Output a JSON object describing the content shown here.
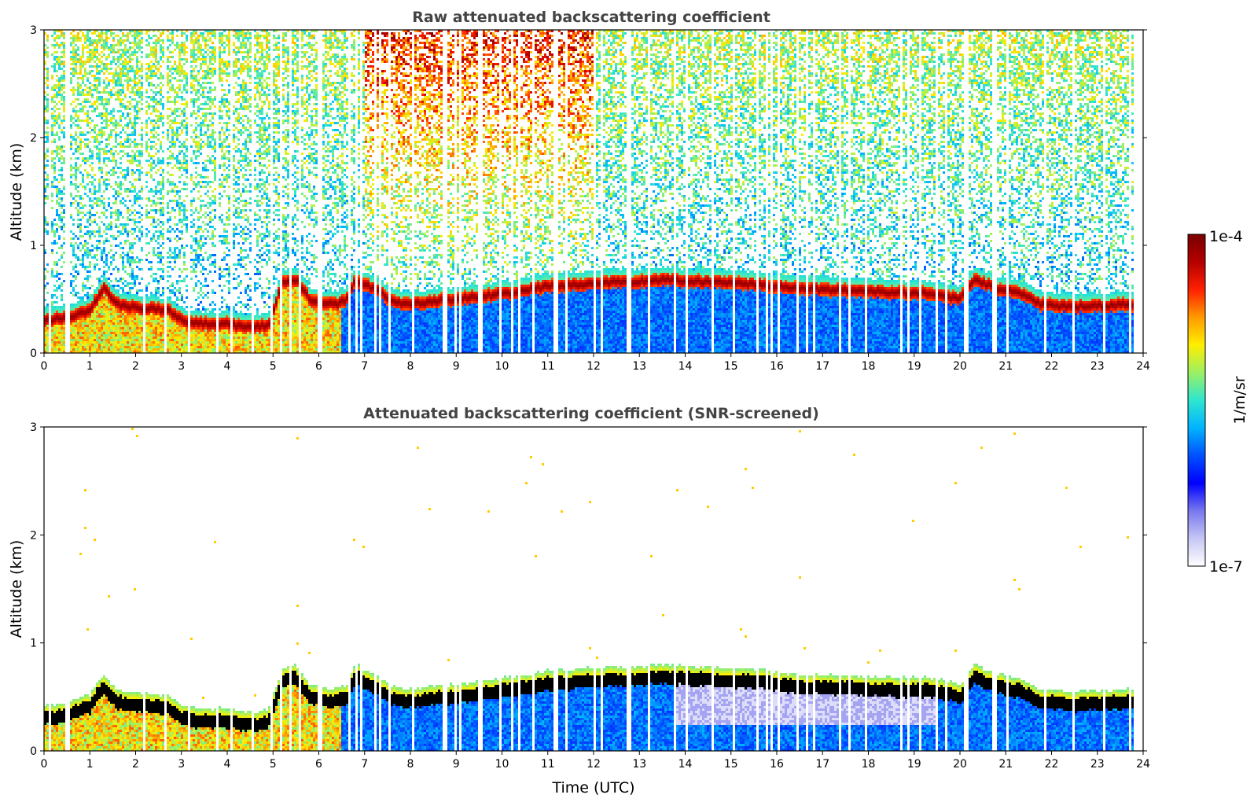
{
  "chart_data": [
    {
      "type": "heatmap",
      "title": "Raw attenuated backscattering coefficient",
      "xlabel": "",
      "ylabel": "Altitude (km)",
      "xlim": [
        0,
        24
      ],
      "ylim": [
        0,
        3
      ],
      "xticks": [
        0,
        1,
        2,
        3,
        4,
        5,
        6,
        7,
        8,
        9,
        10,
        11,
        12,
        13,
        14,
        15,
        16,
        17,
        18,
        19,
        20,
        21,
        22,
        23,
        24
      ],
      "yticks": [
        0,
        1,
        2,
        3
      ],
      "features": {
        "boundary_layer_top_km": [
          [
            0,
            0.3
          ],
          [
            0.5,
            0.33
          ],
          [
            1,
            0.4
          ],
          [
            1.3,
            0.6
          ],
          [
            1.6,
            0.45
          ],
          [
            2,
            0.42
          ],
          [
            2.7,
            0.4
          ],
          [
            3,
            0.3
          ],
          [
            3.5,
            0.27
          ],
          [
            4,
            0.27
          ],
          [
            4.5,
            0.24
          ],
          [
            4.9,
            0.26
          ],
          [
            5.2,
            0.65
          ],
          [
            5.5,
            0.68
          ],
          [
            5.8,
            0.5
          ],
          [
            6.3,
            0.45
          ],
          [
            6.6,
            0.48
          ],
          [
            6.8,
            0.68
          ],
          [
            7.2,
            0.6
          ],
          [
            7.6,
            0.48
          ],
          [
            8,
            0.45
          ],
          [
            8.5,
            0.48
          ],
          [
            9,
            0.5
          ],
          [
            9.5,
            0.52
          ],
          [
            10,
            0.55
          ],
          [
            10.5,
            0.58
          ],
          [
            11,
            0.62
          ],
          [
            11.5,
            0.63
          ],
          [
            12,
            0.65
          ],
          [
            12.5,
            0.66
          ],
          [
            13,
            0.66
          ],
          [
            13.5,
            0.68
          ],
          [
            15.8,
            0.63
          ],
          [
            16.3,
            0.6
          ],
          [
            19.5,
            0.55
          ],
          [
            20,
            0.5
          ],
          [
            20.3,
            0.68
          ],
          [
            20.8,
            0.6
          ],
          [
            21.3,
            0.55
          ],
          [
            21.8,
            0.45
          ],
          [
            22.5,
            0.43
          ],
          [
            23,
            0.44
          ],
          [
            23.8,
            0.45
          ]
        ],
        "data_end_hour": 23.8
      }
    },
    {
      "type": "heatmap",
      "title": "Attenuated backscattering coefficient (SNR-screened)",
      "xlabel": "Time (UTC)",
      "ylabel": "Altitude (km)",
      "xlim": [
        0,
        24
      ],
      "ylim": [
        0,
        3
      ],
      "xticks": [
        0,
        1,
        2,
        3,
        4,
        5,
        6,
        7,
        8,
        9,
        10,
        11,
        12,
        13,
        14,
        15,
        16,
        17,
        18,
        19,
        20,
        21,
        22,
        23,
        24
      ],
      "yticks": [
        0,
        1,
        2,
        3
      ]
    }
  ],
  "colorbar": {
    "label": "1/m/sr",
    "min_label": "1e-7",
    "max_label": "1e-4",
    "scale": "log",
    "colors": [
      "#ffffff",
      "#c6c6f5",
      "#7878ee",
      "#0000ff",
      "#0050ff",
      "#00b4ff",
      "#2ee6d0",
      "#9cf064",
      "#ffee00",
      "#ff9a00",
      "#ff2000",
      "#b40000",
      "#7a0000"
    ]
  }
}
